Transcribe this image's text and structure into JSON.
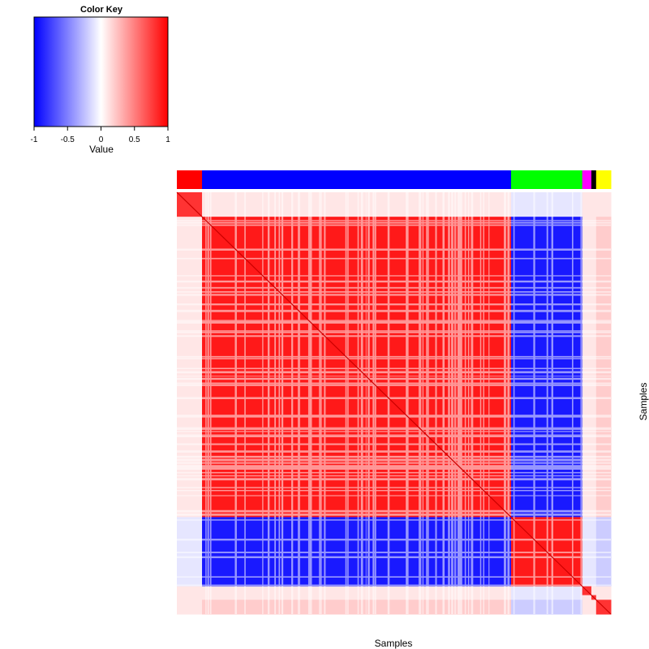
{
  "chart_data": {
    "type": "heatmap",
    "title": "",
    "xlabel": "Samples",
    "ylabel": "Samples",
    "color_key": {
      "title": "Color Key",
      "label": "Value",
      "range": [
        -1,
        1
      ],
      "ticks": [
        "-1",
        "-0.5",
        "0",
        "0.5",
        "1"
      ],
      "colors": [
        "#0000ff",
        "#ffffff",
        "#ff0000"
      ]
    },
    "groups": [
      {
        "color": "#ff0000",
        "fraction": 0.058
      },
      {
        "color": "#0000ff",
        "fraction": 0.712
      },
      {
        "color": "#00ff00",
        "fraction": 0.164
      },
      {
        "color": "#ff00ff",
        "fraction": 0.021
      },
      {
        "color": "#000000",
        "fraction": 0.011
      },
      {
        "color": "#ffff00",
        "fraction": 0.034
      }
    ],
    "group_correlation": [
      [
        0.8,
        0.1,
        -0.1,
        0.1,
        0.1,
        0.1
      ],
      [
        0.1,
        0.9,
        -0.9,
        0.1,
        0.1,
        0.2
      ],
      [
        -0.1,
        -0.9,
        0.9,
        -0.1,
        -0.1,
        -0.2
      ],
      [
        0.1,
        0.1,
        -0.1,
        0.8,
        0.1,
        0.1
      ],
      [
        0.1,
        0.1,
        -0.1,
        0.1,
        0.8,
        0.1
      ],
      [
        0.1,
        0.2,
        -0.2,
        0.1,
        0.1,
        0.8
      ]
    ]
  }
}
